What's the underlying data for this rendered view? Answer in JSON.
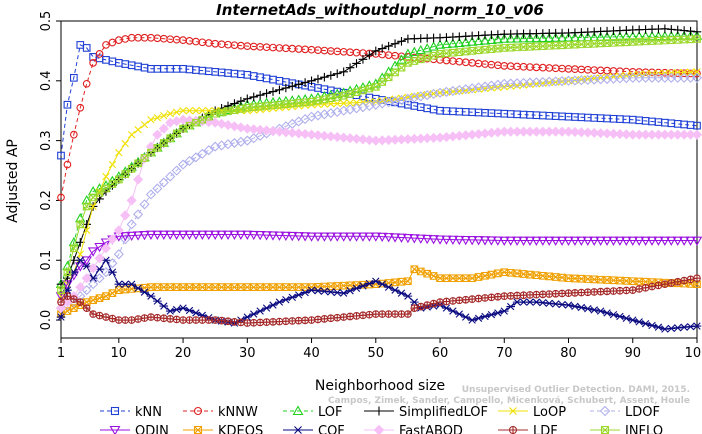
{
  "chart_data": {
    "type": "line",
    "title": "InternetAds_withoutdupl_norm_10_v06",
    "xlabel": "Neighborhood size",
    "ylabel": "Adjusted AP",
    "xlim": [
      1,
      100
    ],
    "ylim": [
      -0.03,
      0.5
    ],
    "xticks": [
      1,
      10,
      20,
      30,
      40,
      50,
      60,
      70,
      80,
      90,
      100
    ],
    "yticks": [
      0.0,
      0.1,
      0.2,
      0.3,
      0.4,
      0.5
    ],
    "yticklabels": [
      "0.0",
      "0.1",
      "0.2",
      "0.3",
      "0.4",
      "0.5"
    ],
    "grid": false,
    "legend_position": "bottom",
    "watermark": [
      "Unsupervised Outlier Detection. DAMI, 2015.",
      "Campos, Zimek, Sander, Campello, Micenková, Schubert, Assent, Houle"
    ],
    "series": [
      {
        "name": "kNN",
        "color": "#1f3fd6",
        "marker": "square",
        "dash": true,
        "x": [
          1,
          2,
          3,
          4,
          5,
          6,
          8,
          10,
          15,
          20,
          25,
          30,
          40,
          50,
          60,
          70,
          80,
          90,
          100
        ],
        "y": [
          0.275,
          0.36,
          0.405,
          0.46,
          0.455,
          0.44,
          0.435,
          0.43,
          0.42,
          0.42,
          0.415,
          0.41,
          0.39,
          0.37,
          0.35,
          0.345,
          0.34,
          0.335,
          0.325
        ]
      },
      {
        "name": "kNNW",
        "color": "#e02020",
        "marker": "circle",
        "dash": true,
        "x": [
          1,
          2,
          3,
          4,
          5,
          6,
          8,
          10,
          12,
          15,
          20,
          25,
          30,
          40,
          50,
          60,
          70,
          80,
          90,
          100
        ],
        "y": [
          0.205,
          0.26,
          0.31,
          0.355,
          0.395,
          0.43,
          0.46,
          0.468,
          0.472,
          0.472,
          0.468,
          0.462,
          0.458,
          0.452,
          0.445,
          0.435,
          0.425,
          0.42,
          0.415,
          0.412
        ]
      },
      {
        "name": "LOF",
        "color": "#20d020",
        "marker": "triangle-up",
        "dash": true,
        "x": [
          1,
          2,
          3,
          4,
          5,
          6,
          8,
          10,
          15,
          20,
          25,
          30,
          35,
          40,
          45,
          50,
          55,
          60,
          65,
          70,
          80,
          90,
          100
        ],
        "y": [
          0.06,
          0.09,
          0.13,
          0.17,
          0.2,
          0.215,
          0.225,
          0.24,
          0.28,
          0.32,
          0.345,
          0.36,
          0.365,
          0.37,
          0.38,
          0.395,
          0.445,
          0.46,
          0.465,
          0.47,
          0.472,
          0.474,
          0.475
        ]
      },
      {
        "name": "SimplifiedLOF",
        "color": "#000000",
        "marker": "plus",
        "dash": false,
        "x": [
          1,
          2,
          3,
          4,
          5,
          6,
          8,
          10,
          15,
          20,
          25,
          30,
          35,
          40,
          45,
          50,
          55,
          60,
          65,
          70,
          80,
          90,
          95,
          100
        ],
        "y": [
          0.06,
          0.07,
          0.1,
          0.13,
          0.16,
          0.19,
          0.215,
          0.235,
          0.28,
          0.32,
          0.35,
          0.37,
          0.385,
          0.4,
          0.415,
          0.45,
          0.47,
          0.472,
          0.475,
          0.478,
          0.48,
          0.485,
          0.487,
          0.482
        ]
      },
      {
        "name": "LoOP",
        "color": "#f0e000",
        "marker": "x",
        "dash": false,
        "x": [
          1,
          2,
          3,
          4,
          5,
          6,
          8,
          10,
          12,
          15,
          18,
          20,
          25,
          30,
          40,
          50,
          60,
          70,
          80,
          90,
          100
        ],
        "y": [
          0.04,
          0.06,
          0.08,
          0.11,
          0.15,
          0.19,
          0.24,
          0.28,
          0.31,
          0.335,
          0.345,
          0.35,
          0.35,
          0.35,
          0.36,
          0.365,
          0.38,
          0.39,
          0.4,
          0.41,
          0.415
        ]
      },
      {
        "name": "LDOF",
        "color": "#b0b0ee",
        "marker": "diamond",
        "dash": true,
        "x": [
          1,
          3,
          5,
          8,
          10,
          12,
          15,
          18,
          20,
          25,
          30,
          35,
          40,
          50,
          60,
          70,
          80,
          90,
          100
        ],
        "y": [
          0.02,
          0.03,
          0.05,
          0.08,
          0.11,
          0.16,
          0.21,
          0.24,
          0.26,
          0.29,
          0.3,
          0.32,
          0.34,
          0.36,
          0.38,
          0.395,
          0.4,
          0.405,
          0.405
        ]
      },
      {
        "name": "ODIN",
        "color": "#9a10e0",
        "marker": "triangle-down",
        "dash": false,
        "x": [
          1,
          2,
          3,
          4,
          5,
          6,
          8,
          10,
          15,
          20,
          25,
          30,
          40,
          50,
          60,
          70,
          80,
          90,
          100
        ],
        "y": [
          0.04,
          0.06,
          0.075,
          0.09,
          0.1,
          0.115,
          0.13,
          0.14,
          0.143,
          0.143,
          0.143,
          0.143,
          0.14,
          0.14,
          0.135,
          0.133,
          0.133,
          0.133,
          0.133
        ]
      },
      {
        "name": "KDEOS",
        "color": "#f0a000",
        "marker": "square-x",
        "dash": false,
        "x": [
          1,
          3,
          5,
          8,
          10,
          15,
          20,
          25,
          30,
          40,
          50,
          55,
          56,
          60,
          65,
          70,
          75,
          80,
          90,
          100
        ],
        "y": [
          0.01,
          0.02,
          0.03,
          0.04,
          0.05,
          0.055,
          0.055,
          0.055,
          0.055,
          0.055,
          0.06,
          0.065,
          0.085,
          0.07,
          0.07,
          0.08,
          0.075,
          0.07,
          0.065,
          0.06
        ]
      },
      {
        "name": "COF",
        "color": "#0a0a80",
        "marker": "asterisk",
        "dash": false,
        "x": [
          1,
          2,
          3,
          4,
          5,
          6,
          8,
          10,
          12,
          15,
          18,
          20,
          25,
          28,
          30,
          35,
          40,
          45,
          50,
          52,
          55,
          57,
          60,
          65,
          70,
          72,
          75,
          80,
          85,
          90,
          95,
          100
        ],
        "y": [
          0.005,
          0.05,
          0.08,
          0.1,
          0.09,
          0.07,
          0.1,
          0.06,
          0.06,
          0.04,
          0.015,
          0.02,
          0.0,
          -0.005,
          0.005,
          0.03,
          0.05,
          0.045,
          0.065,
          0.055,
          0.04,
          0.02,
          0.025,
          0.0,
          0.015,
          0.03,
          0.03,
          0.025,
          0.015,
          0.0,
          -0.015,
          -0.01
        ]
      },
      {
        "name": "FastABOD",
        "color": "#f6c0f6",
        "marker": "diamond-filled",
        "dash": false,
        "x": [
          1,
          3,
          5,
          8,
          10,
          12,
          14,
          16,
          18,
          20,
          25,
          30,
          40,
          50,
          60,
          70,
          80,
          90,
          100
        ],
        "y": [
          0.02,
          0.04,
          0.07,
          0.12,
          0.15,
          0.2,
          0.27,
          0.31,
          0.33,
          0.335,
          0.33,
          0.32,
          0.31,
          0.3,
          0.305,
          0.315,
          0.315,
          0.31,
          0.31
        ]
      },
      {
        "name": "LDF",
        "color": "#a52828",
        "marker": "circle-plus",
        "dash": false,
        "x": [
          1,
          2,
          3,
          4,
          5,
          6,
          8,
          10,
          12,
          15,
          20,
          25,
          30,
          40,
          50,
          55,
          56,
          60,
          65,
          70,
          80,
          90,
          100
        ],
        "y": [
          0.03,
          0.04,
          0.035,
          0.03,
          0.02,
          0.01,
          0.005,
          0.0,
          0.0,
          0.005,
          0.0,
          0.0,
          -0.005,
          0.0,
          0.01,
          0.01,
          0.02,
          0.03,
          0.035,
          0.04,
          0.045,
          0.05,
          0.07
        ]
      },
      {
        "name": "INFLO",
        "color": "#9cd82c",
        "marker": "square-x",
        "dash": false,
        "x": [
          1,
          2,
          3,
          4,
          5,
          6,
          8,
          10,
          15,
          20,
          25,
          30,
          35,
          40,
          45,
          50,
          55,
          60,
          65,
          70,
          80,
          90,
          100
        ],
        "y": [
          0.05,
          0.08,
          0.12,
          0.16,
          0.19,
          0.205,
          0.22,
          0.235,
          0.28,
          0.32,
          0.345,
          0.355,
          0.36,
          0.365,
          0.375,
          0.39,
          0.43,
          0.445,
          0.45,
          0.455,
          0.46,
          0.465,
          0.47
        ]
      }
    ]
  }
}
